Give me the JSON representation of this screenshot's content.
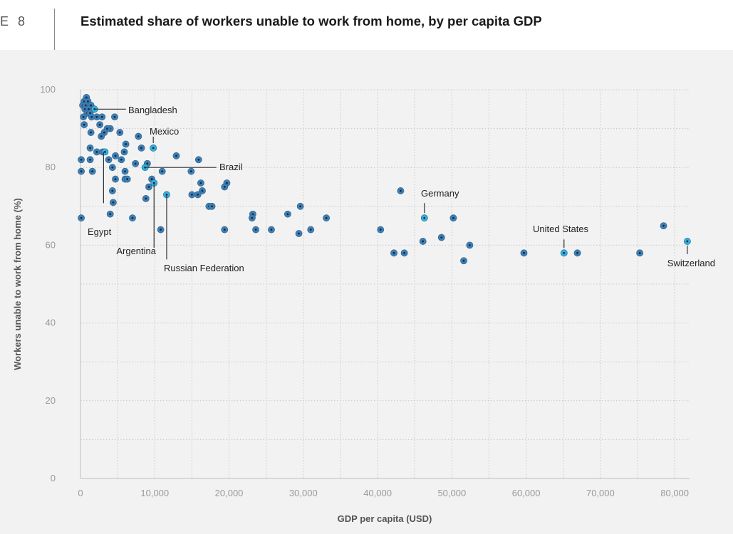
{
  "header": {
    "figure_label": "E 8",
    "title": "Estimated share of workers unable to work from home, by per capita GDP"
  },
  "colors": {
    "point_fill": "#3f7fb4",
    "point_center": "#0d2a40",
    "highlight_fill": "#2fb3e0",
    "background": "#f2f2f2",
    "grid": "#c8c8c8"
  },
  "chart_data": {
    "type": "scatter",
    "title": "Estimated share of workers unable to work from home, by per capita GDP",
    "xlabel": "GDP per capita (USD)",
    "ylabel": "Workers unable to work from home (%)",
    "xlim": [
      0,
      82000
    ],
    "ylim": [
      0,
      100
    ],
    "xticks": [
      0,
      10000,
      20000,
      30000,
      40000,
      50000,
      60000,
      70000,
      80000
    ],
    "xtick_labels": [
      "0",
      "10,000",
      "20,000",
      "30,000",
      "40,000",
      "50,000",
      "60,000",
      "70,000",
      "80,000"
    ],
    "yticks": [
      0,
      20,
      40,
      60,
      80,
      100
    ],
    "ytick_labels": [
      "0",
      "20",
      "40",
      "60",
      "80",
      "100"
    ],
    "grid": "dotted",
    "points": [
      [
        800,
        98
      ],
      [
        500,
        97
      ],
      [
        1000,
        97
      ],
      [
        300,
        96
      ],
      [
        700,
        96
      ],
      [
        1400,
        96
      ],
      [
        600,
        95
      ],
      [
        1100,
        95
      ],
      [
        1800,
        95
      ],
      [
        900,
        94
      ],
      [
        1300,
        94
      ],
      [
        2200,
        93
      ],
      [
        400,
        93
      ],
      [
        1500,
        93
      ],
      [
        2900,
        93
      ],
      [
        4600,
        93
      ],
      [
        500,
        91
      ],
      [
        2600,
        91
      ],
      [
        4000,
        90
      ],
      [
        3600,
        90
      ],
      [
        3200,
        89
      ],
      [
        1400,
        89
      ],
      [
        2800,
        88
      ],
      [
        5300,
        89
      ],
      [
        7800,
        88
      ],
      [
        6100,
        86
      ],
      [
        8200,
        85
      ],
      [
        1300,
        85
      ],
      [
        2200,
        84
      ],
      [
        3000,
        84
      ],
      [
        5900,
        84
      ],
      [
        4700,
        83
      ],
      [
        5500,
        82
      ],
      [
        12900,
        83
      ],
      [
        100,
        82
      ],
      [
        1300,
        82
      ],
      [
        3800,
        82
      ],
      [
        15900,
        82
      ],
      [
        7400,
        81
      ],
      [
        9000,
        81
      ],
      [
        4300,
        80
      ],
      [
        100,
        79
      ],
      [
        1600,
        79
      ],
      [
        6000,
        79
      ],
      [
        11000,
        79
      ],
      [
        14900,
        79
      ],
      [
        4700,
        77
      ],
      [
        6000,
        77
      ],
      [
        6300,
        77
      ],
      [
        9600,
        77
      ],
      [
        16200,
        76
      ],
      [
        19700,
        76
      ],
      [
        9200,
        75
      ],
      [
        19400,
        75
      ],
      [
        4300,
        74
      ],
      [
        16400,
        74
      ],
      [
        15000,
        73
      ],
      [
        15800,
        73
      ],
      [
        8800,
        72
      ],
      [
        4400,
        71
      ],
      [
        17300,
        70
      ],
      [
        17700,
        70
      ],
      [
        29600,
        70
      ],
      [
        23200,
        68
      ],
      [
        27900,
        68
      ],
      [
        4000,
        68
      ],
      [
        100,
        67
      ],
      [
        7000,
        67
      ],
      [
        23100,
        67
      ],
      [
        33100,
        67
      ],
      [
        50200,
        67
      ],
      [
        43100,
        74
      ],
      [
        78500,
        65
      ],
      [
        10800,
        64
      ],
      [
        19400,
        64
      ],
      [
        23600,
        64
      ],
      [
        25700,
        64
      ],
      [
        31000,
        64
      ],
      [
        40400,
        64
      ],
      [
        29400,
        63
      ],
      [
        48600,
        62
      ],
      [
        46100,
        61
      ],
      [
        52400,
        60
      ],
      [
        42200,
        58
      ],
      [
        43600,
        58
      ],
      [
        59700,
        58
      ],
      [
        66900,
        58
      ],
      [
        75300,
        58
      ],
      [
        51600,
        56
      ]
    ],
    "highlights": [
      {
        "x": 1900,
        "y": 95,
        "label": "Bangladesh"
      },
      {
        "x": 9800,
        "y": 85,
        "label": "Mexico"
      },
      {
        "x": 8700,
        "y": 80,
        "label": "Brazil"
      },
      {
        "x": 3300,
        "y": 84,
        "label": "Egypt"
      },
      {
        "x": 9900,
        "y": 76,
        "label": "Argentina"
      },
      {
        "x": 11600,
        "y": 73,
        "label": "Russian Federation"
      },
      {
        "x": 46300,
        "y": 67,
        "label": "Germany"
      },
      {
        "x": 65100,
        "y": 58,
        "label": "United States"
      },
      {
        "x": 81700,
        "y": 61,
        "label": "Switzerland"
      }
    ]
  }
}
